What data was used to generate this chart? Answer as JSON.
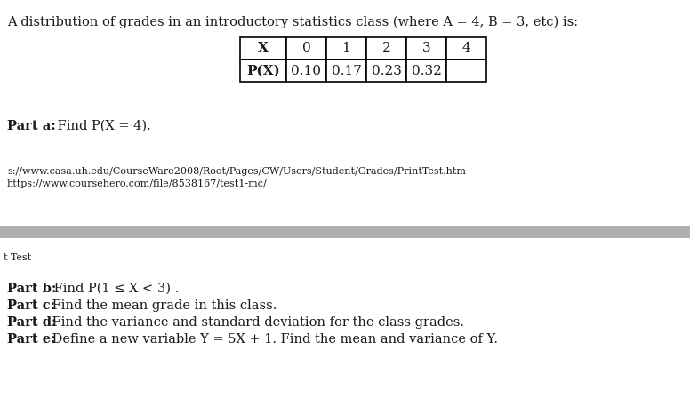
{
  "title_text": "A distribution of grades in an introductory statistics class (where A = 4, B = 3, etc) is:",
  "table_headers": [
    "X",
    "0",
    "1",
    "2",
    "3",
    "4"
  ],
  "table_row_label": "P(X)",
  "table_values": [
    "0.10",
    "0.17",
    "0.23",
    "0.32",
    ""
  ],
  "part_a_bold": "Part a:",
  "part_a_rest": " Find P(X = 4).",
  "url1": "s://www.casa.uh.edu/CourseWare2008/Root/Pages/CW/Users/Student/Grades/PrintTest.htm",
  "url2": "https://www.coursehero.com/file/8538167/test1-mc/",
  "t_test_label": "t Test",
  "part_b_bold": "Part b:",
  "part_b_rest": " Find P(1 ≤ X < 3) .",
  "part_c_bold": "Part c:",
  "part_c_rest": " Find the mean grade in this class.",
  "part_d_bold": "Part d:",
  "part_d_rest": " Find the variance and standard deviation for the class grades.",
  "part_e_bold": "Part e:",
  "part_e_rest": " Define a new variable Y = 5X + 1. Find the mean and variance of Y.",
  "bg_color": "#ffffff",
  "text_color": "#1a1a1a",
  "separator_color": "#b0b0b0",
  "title_fontsize": 10.5,
  "body_fontsize": 10.5,
  "url_fontsize": 8.0,
  "ttest_fontsize": 8.0
}
